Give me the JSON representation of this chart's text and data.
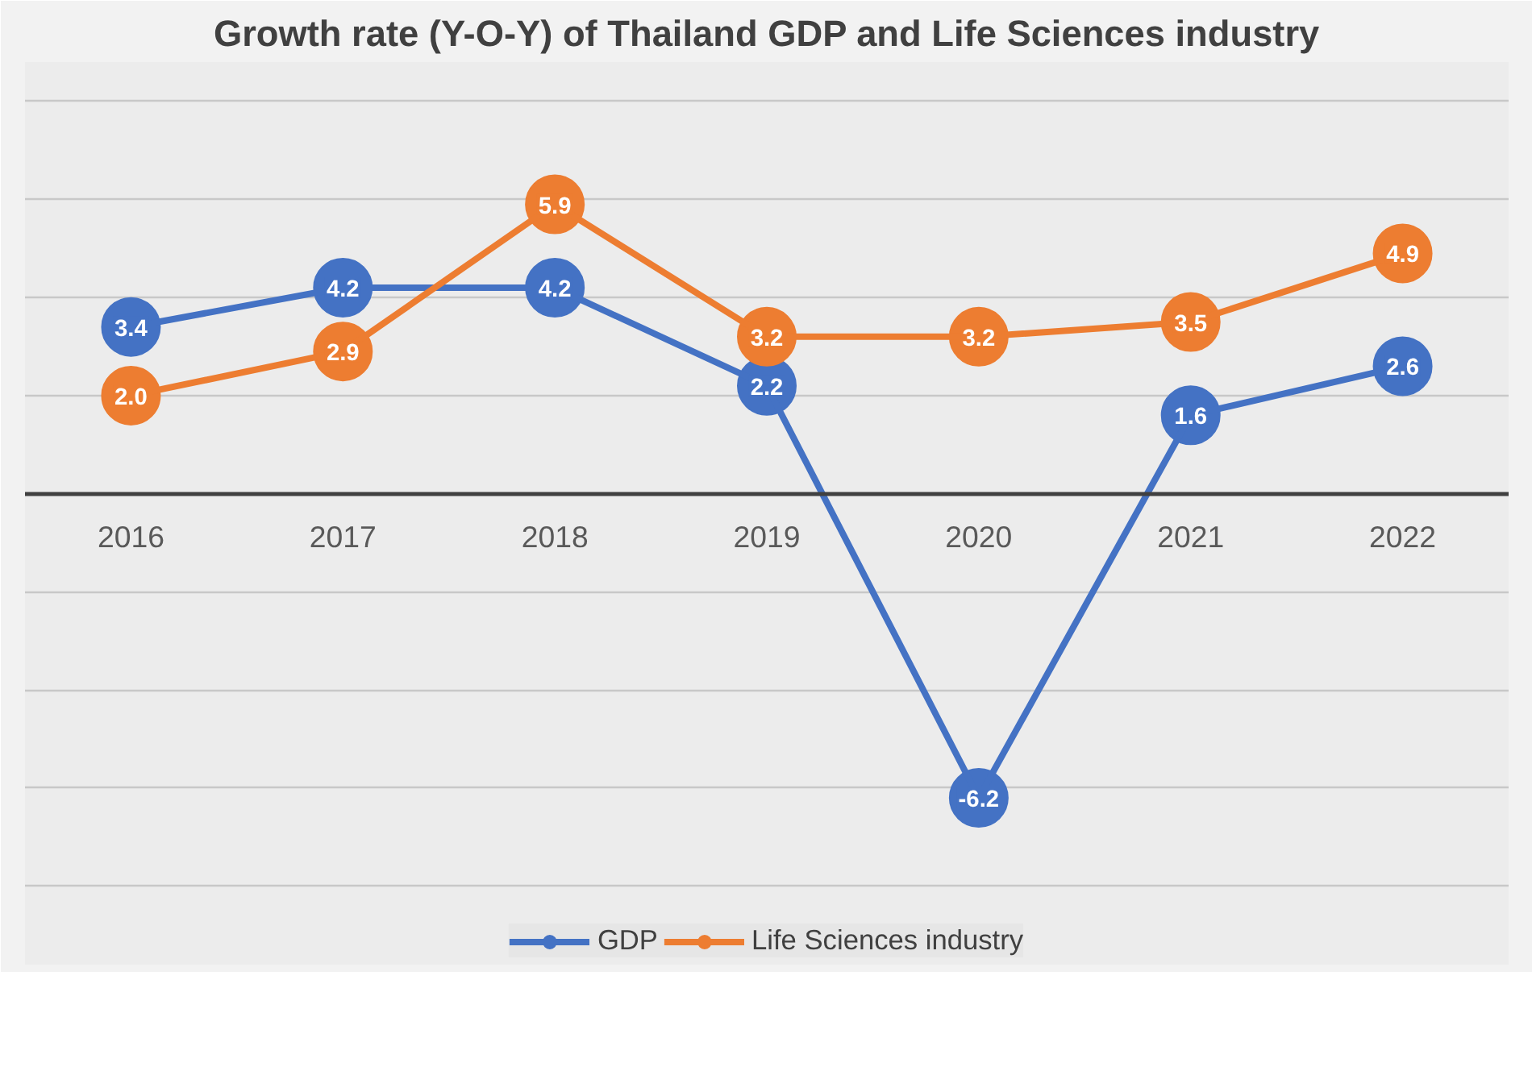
{
  "chart_data": {
    "type": "line",
    "title": "Growth rate (Y-O-Y) of Thailand GDP and Life Sciences industry",
    "categories": [
      "2016",
      "2017",
      "2018",
      "2019",
      "2020",
      "2021",
      "2022"
    ],
    "series": [
      {
        "name": "GDP",
        "color": "#4472c4",
        "values": [
          3.4,
          4.2,
          4.2,
          2.2,
          -6.2,
          1.6,
          2.6
        ],
        "value_labels": [
          "3.4",
          "4.2",
          "4.2",
          "2.2",
          "-6.2",
          "1.6",
          "2.6"
        ]
      },
      {
        "name": "Life Sciences industry",
        "color": "#ed7d31",
        "values": [
          2.0,
          2.9,
          5.9,
          3.2,
          3.2,
          3.5,
          4.9
        ],
        "value_labels": [
          "2.0",
          "2.9",
          "5.9",
          "3.2",
          "3.2",
          "3.5",
          "4.9"
        ]
      }
    ],
    "ylim": [
      -9.6,
      8.8
    ],
    "yticks": [
      {
        "value": -8,
        "label": null
      },
      {
        "value": -6,
        "label": null
      },
      {
        "value": -4,
        "label": null
      },
      {
        "value": -2,
        "label": null
      },
      {
        "value": 0,
        "label": null
      },
      {
        "value": 2,
        "label": null
      },
      {
        "value": 4,
        "label": null
      },
      {
        "value": 6,
        "label": null
      },
      {
        "value": 8,
        "label": null
      }
    ],
    "tick_labels": "x",
    "grid": "y",
    "legend": "bottom",
    "marker": "circle",
    "line_style": "solid"
  }
}
